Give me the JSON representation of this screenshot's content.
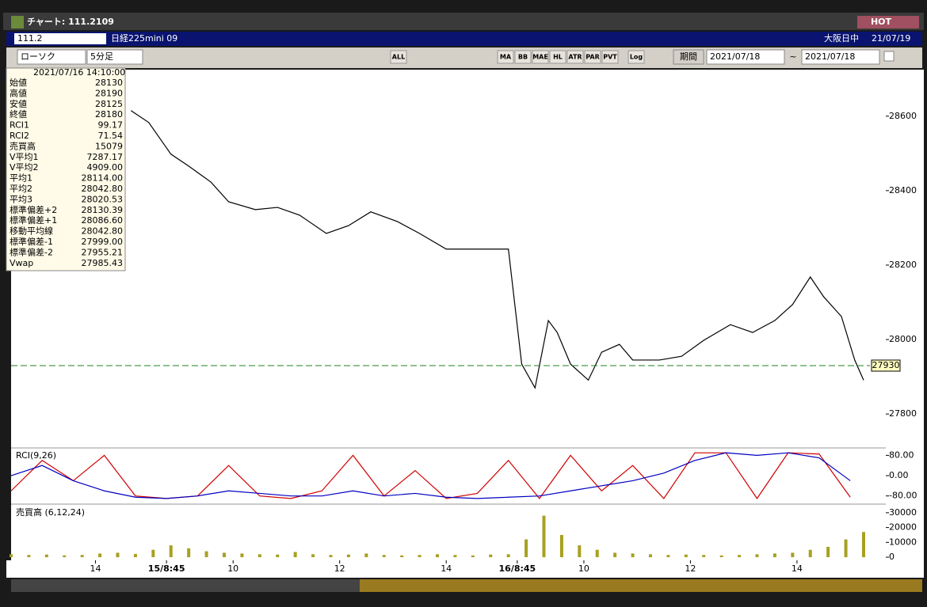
{
  "window": {
    "title": "チャート: 111.2109",
    "hot": "HOT"
  },
  "symbol_bar": {
    "code": "111.2",
    "instrument": "日経225mini 09",
    "session": "大阪日中",
    "date": "21/07/19"
  },
  "toolbar": {
    "chart_type": "ローソク",
    "interval": "5分足",
    "buttons": [
      "ALL",
      "MA",
      "BB",
      "MAE",
      "HL",
      "ATR",
      "PAR",
      "PVT",
      "Log"
    ],
    "period_label": "期間",
    "date_from": "2021/07/18",
    "tilde": "~",
    "date_to": "2021/07/18"
  },
  "info_panel": {
    "datetime": "2021/07/16 14:10:00",
    "rows": [
      {
        "label": "始値",
        "value": "28130",
        "color": "#000000"
      },
      {
        "label": "高値",
        "value": "28190",
        "color": "#000000"
      },
      {
        "label": "安値",
        "value": "28125",
        "color": "#000000"
      },
      {
        "label": "終値",
        "value": "28180",
        "color": "#000000"
      },
      {
        "label": "RCI1",
        "value": "99.17",
        "color": "#d00000"
      },
      {
        "label": "RCI2",
        "value": "71.54",
        "color": "#0000c0"
      },
      {
        "label": "売買高",
        "value": "15079",
        "color": "#8a8a00"
      },
      {
        "label": "V平均1",
        "value": "7287.17",
        "color": "#d00000"
      },
      {
        "label": "V平均2",
        "value": "4909.00",
        "color": "#2050d0"
      },
      {
        "label": "平均1",
        "value": "28114.00",
        "color": "#d00000"
      },
      {
        "label": "平均2",
        "value": "28042.80",
        "color": "#000000"
      },
      {
        "label": "平均3",
        "value": "28020.53",
        "color": "#008000"
      },
      {
        "label": "標準偏差+2",
        "value": "28130.39",
        "color": "#909090"
      },
      {
        "label": "標準偏差+1",
        "value": "28086.60",
        "color": "#909090"
      },
      {
        "label": "移動平均線",
        "value": "28042.80",
        "color": "#0000c0"
      },
      {
        "label": "標準偏差-1",
        "value": "27999.00",
        "color": "#909090"
      },
      {
        "label": "標準偏差-2",
        "value": "27955.21",
        "color": "#909090"
      },
      {
        "label": "Vwap",
        "value": "27985.43",
        "color": "#d000a0"
      }
    ]
  },
  "chart_data": [
    {
      "type": "line",
      "color": "#000000",
      "x": [
        27,
        31,
        36,
        40,
        45,
        49,
        55,
        60,
        65,
        71,
        76,
        81,
        87,
        92,
        98,
        105,
        112,
        115,
        118,
        121,
        123,
        126,
        130,
        133,
        137,
        140,
        146,
        151,
        156,
        162,
        167,
        172,
        176,
        180,
        183,
        187,
        190,
        192
      ],
      "values": [
        28615,
        28583,
        28498,
        28466,
        28423,
        28370,
        28349,
        28355,
        28334,
        28285,
        28306,
        28343,
        28317,
        28285,
        28243,
        28243,
        28243,
        27934,
        27870,
        28051,
        28019,
        27934,
        27891,
        27966,
        27987,
        27945,
        27945,
        27955,
        27998,
        28040,
        28019,
        28051,
        28094,
        28168,
        28115,
        28062,
        27945,
        27891
      ],
      "last_price": 27930,
      "xlim": [
        0,
        197
      ],
      "xticks": [
        {
          "value": 19,
          "label": "14"
        },
        {
          "value": 35,
          "label": "15/8:45"
        },
        {
          "value": 50,
          "label": "10"
        },
        {
          "value": 74,
          "label": "12"
        },
        {
          "value": 98,
          "label": "14"
        },
        {
          "value": 114,
          "label": "16/8:45"
        },
        {
          "value": 129,
          "label": "10"
        },
        {
          "value": 153,
          "label": "12"
        },
        {
          "value": 177,
          "label": "14"
        }
      ],
      "ylim": [
        27711,
        28725
      ],
      "yticks": [
        27800,
        28000,
        28200,
        28400,
        28600
      ]
    },
    {
      "type": "line",
      "title": "RCI(9,26)",
      "x": [
        0,
        7,
        14,
        21,
        28,
        35,
        42,
        49,
        56,
        63,
        70,
        77,
        84,
        91,
        98,
        105,
        112,
        119,
        126,
        133,
        140,
        147,
        154,
        161,
        168,
        175,
        182,
        189
      ],
      "series": [
        {
          "color": "#d00000",
          "values": [
            -60,
            60,
            -20,
            80,
            -80,
            -90,
            -80,
            40,
            -80,
            -90,
            -60,
            80,
            -80,
            20,
            -90,
            -70,
            60,
            -90,
            80,
            -60,
            40,
            -90,
            90,
            90,
            -90,
            90,
            85,
            -85
          ]
        },
        {
          "color": "#0000c0",
          "values": [
            0,
            40,
            -20,
            -60,
            -85,
            -90,
            -80,
            -60,
            -70,
            -80,
            -80,
            -60,
            -80,
            -70,
            -85,
            -90,
            -85,
            -80,
            -60,
            -40,
            -20,
            10,
            60,
            90,
            80,
            90,
            70,
            -20
          ]
        }
      ],
      "xlim": [
        0,
        197
      ],
      "ylim": [
        -106,
        103
      ],
      "yticks": [
        {
          "value": 80,
          "label": "80.00"
        },
        {
          "value": 0,
          "label": "0.00"
        },
        {
          "value": -80,
          "label": "-80.00"
        }
      ]
    },
    {
      "type": "bar",
      "title": "売買高 (6,12,24)",
      "color": "#a8a020",
      "x": [
        0,
        4,
        8,
        12,
        16,
        20,
        24,
        28,
        32,
        36,
        40,
        44,
        48,
        52,
        56,
        60,
        64,
        68,
        72,
        76,
        80,
        84,
        88,
        92,
        96,
        100,
        104,
        108,
        112,
        116,
        120,
        124,
        128,
        132,
        136,
        140,
        144,
        148,
        152,
        156,
        160,
        164,
        168,
        172,
        176,
        180,
        184,
        188,
        192
      ],
      "values": [
        2000,
        1500,
        1800,
        1200,
        1500,
        2500,
        3000,
        2200,
        5000,
        8000,
        6000,
        4000,
        3000,
        2500,
        2000,
        1800,
        3500,
        2000,
        1500,
        1800,
        2500,
        1500,
        1200,
        1500,
        2000,
        1500,
        1200,
        1800,
        2000,
        12000,
        28000,
        15000,
        8000,
        5000,
        3000,
        2500,
        2000,
        1500,
        1800,
        1500,
        1200,
        1500,
        2000,
        2500,
        3000,
        5000,
        7000,
        12000,
        17000
      ],
      "xlim": [
        0,
        197
      ],
      "ylim": [
        -2100,
        34200
      ],
      "yticks": [
        0,
        10000,
        20000,
        30000
      ]
    }
  ]
}
